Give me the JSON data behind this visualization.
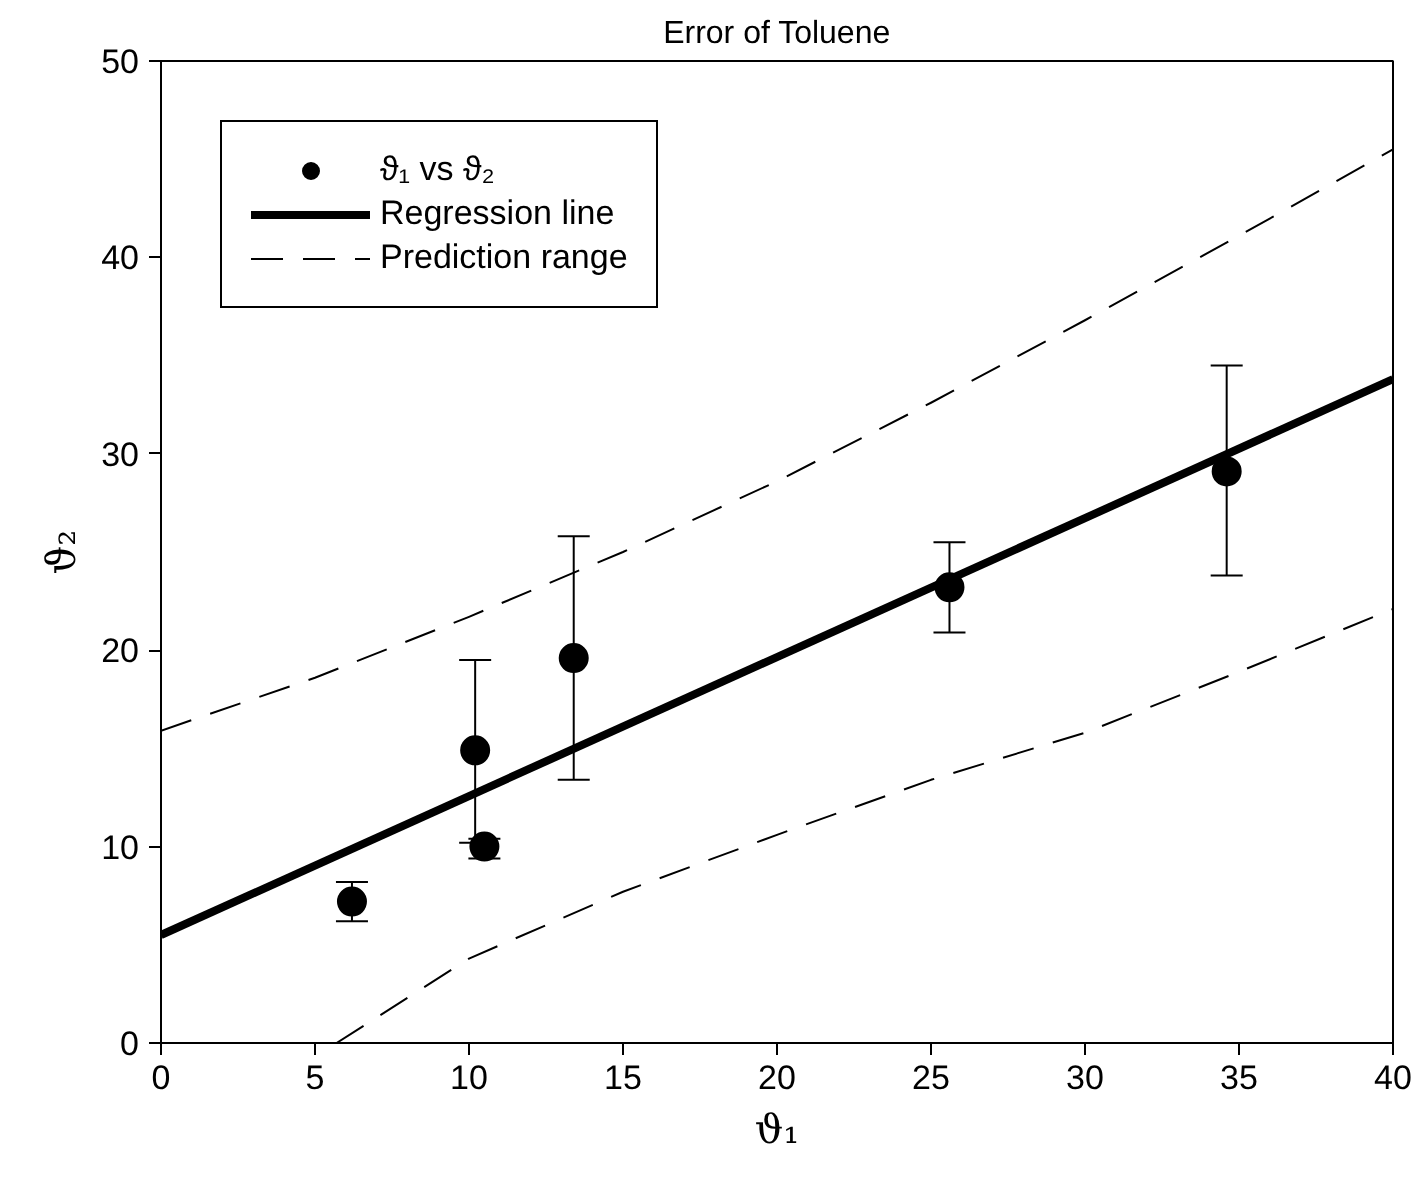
{
  "chart_data": {
    "type": "scatter",
    "title": "Error of Toluene",
    "xlabel": "ϑ₁",
    "ylabel": "ϑ₂",
    "xlim": [
      0,
      40
    ],
    "ylim": [
      0,
      50
    ],
    "xticks": [
      0,
      5,
      10,
      15,
      20,
      25,
      30,
      35,
      40
    ],
    "yticks": [
      0,
      10,
      20,
      30,
      40,
      50
    ],
    "grid": false,
    "legend": "top left",
    "series": [
      {
        "name": "ϑ₁ vs ϑ₂",
        "marker": "circle",
        "color": "#000000",
        "x": [
          6.2,
          10.2,
          10.5,
          13.4,
          25.6,
          34.6
        ],
        "values": [
          7.2,
          14.9,
          10.0,
          19.6,
          23.2,
          29.1
        ],
        "errors": [
          [
            6.2,
            8.2
          ],
          [
            10.2,
            19.5
          ],
          [
            9.4,
            10.4
          ],
          [
            13.4,
            25.8
          ],
          [
            20.9,
            25.5
          ],
          [
            23.8,
            34.5
          ]
        ]
      },
      {
        "name": "Regression line",
        "type": "line",
        "color": "#000000",
        "line_style": "solid",
        "x": [
          0,
          40
        ],
        "values": [
          5.5,
          33.8
        ]
      },
      {
        "name": "Prediction range",
        "type": "line",
        "color": "#000000",
        "line_style": "dashed",
        "x": [
          0,
          5,
          10,
          15,
          20,
          25,
          30,
          35,
          40
        ],
        "values": [
          15.9,
          18.6,
          21.7,
          25.0,
          28.6,
          32.6,
          36.8,
          41.1,
          45.5
        ]
      },
      {
        "type": "line",
        "color": "#000000",
        "line_style": "dashed",
        "x": [
          5.7,
          10,
          15,
          20,
          25,
          30,
          35,
          40
        ],
        "values": [
          0,
          4.3,
          7.7,
          10.6,
          13.4,
          15.8,
          18.9,
          22.1
        ]
      }
    ]
  }
}
